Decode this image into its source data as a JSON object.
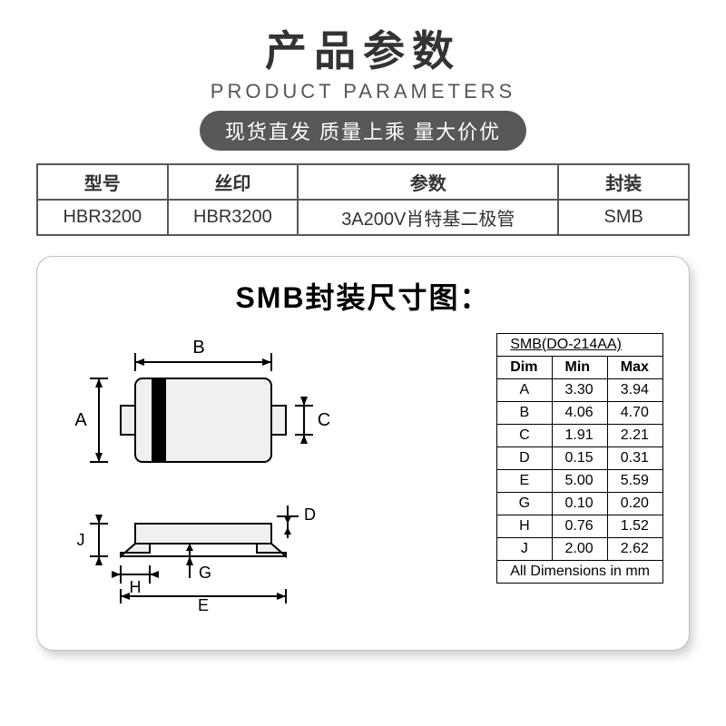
{
  "header": {
    "title_cn": "产品参数",
    "title_en": "PRODUCT PARAMETERS",
    "pill_text": "现货直发  质量上乘  量大价优"
  },
  "product_table": {
    "columns": [
      "型号",
      "丝印",
      "参数",
      "封装"
    ],
    "col_widths": [
      "20%",
      "20%",
      "40%",
      "20%"
    ],
    "rows": [
      [
        "HBR3200",
        "HBR3200",
        "3A200V肖特基二极管",
        "SMB"
      ]
    ]
  },
  "panel": {
    "title": "SMB封装尺寸图：",
    "dim_table": {
      "header": "SMB(DO-214AA)",
      "columns": [
        "Dim",
        "Min",
        "Max"
      ],
      "rows": [
        [
          "A",
          "3.30",
          "3.94"
        ],
        [
          "B",
          "4.06",
          "4.70"
        ],
        [
          "C",
          "1.91",
          "2.21"
        ],
        [
          "D",
          "0.15",
          "0.31"
        ],
        [
          "E",
          "5.00",
          "5.59"
        ],
        [
          "G",
          "0.10",
          "0.20"
        ],
        [
          "H",
          "0.76",
          "1.52"
        ],
        [
          "J",
          "2.00",
          "2.62"
        ]
      ],
      "footer": "All Dimensions in mm"
    },
    "diagram": {
      "labels": [
        "A",
        "B",
        "C",
        "D",
        "E",
        "G",
        "H",
        "J"
      ],
      "stroke": "#000000",
      "fill_body": "#f0f0f0"
    }
  },
  "style": {
    "pill_bg": "#56585a",
    "pill_fg": "#ffffff",
    "border_color": "#56585a"
  }
}
